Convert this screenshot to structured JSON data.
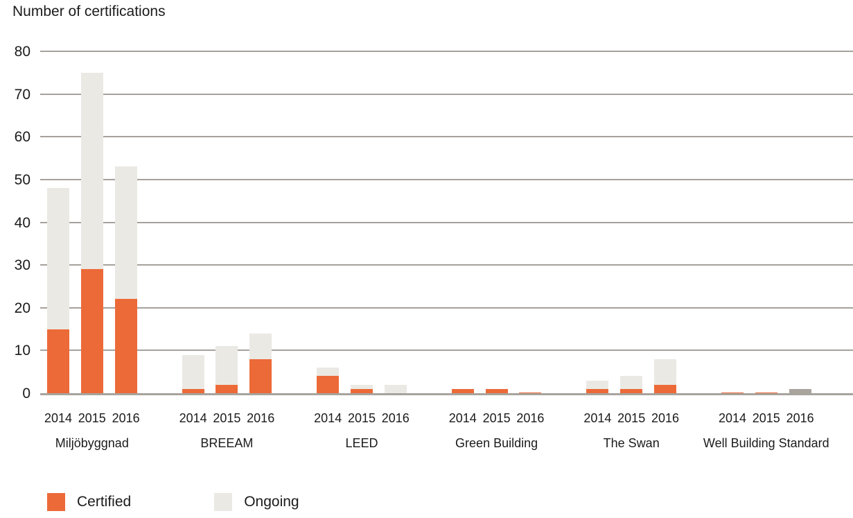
{
  "title": "Number of certifications",
  "legend": {
    "items": [
      {
        "label": "Certified",
        "color": "#ec6a38"
      },
      {
        "label": "Ongoing",
        "color": "#ebe9e4"
      }
    ]
  },
  "colors": {
    "certified": "#ec6a38",
    "ongoing": "#ebe9e4",
    "unlabeled_gray_bar": "#a9a49e",
    "gridline": "#a5a19b",
    "axis_line": "#a7a39d",
    "text": "#1b1b1b",
    "background": "#ffffff"
  },
  "chart_data": {
    "type": "bar",
    "stacked": true,
    "title": "Number of certifications",
    "xlabel": "",
    "ylabel": "Number of certifications",
    "ylim": [
      0,
      80
    ],
    "yticks": [
      0,
      10,
      20,
      30,
      40,
      50,
      60,
      70,
      80
    ],
    "grid": true,
    "legend_position": "bottom-left",
    "series_names": [
      "Certified",
      "Ongoing"
    ],
    "years": [
      "2014",
      "2015",
      "2016"
    ],
    "groups": [
      {
        "label": "Miljöbyggnad",
        "certified": [
          15,
          29,
          22
        ],
        "ongoing": [
          33,
          46,
          31
        ],
        "other": [
          0,
          0,
          0
        ]
      },
      {
        "label": "BREEAM",
        "certified": [
          1,
          2,
          8
        ],
        "ongoing": [
          8,
          9,
          6
        ],
        "other": [
          0,
          0,
          0
        ]
      },
      {
        "label": "LEED",
        "certified": [
          4,
          1,
          0
        ],
        "ongoing": [
          2,
          1,
          2
        ],
        "other": [
          0,
          0,
          0
        ]
      },
      {
        "label": "Green Building",
        "certified": [
          1,
          1,
          0.2
        ],
        "ongoing": [
          0,
          0,
          0
        ],
        "other": [
          0,
          0,
          0
        ]
      },
      {
        "label": "The Swan",
        "certified": [
          1,
          1,
          2
        ],
        "ongoing": [
          2,
          3,
          6
        ],
        "other": [
          0,
          0,
          0
        ]
      },
      {
        "label": "Well Building Standard",
        "certified": [
          0.2,
          0.2,
          0
        ],
        "ongoing": [
          0,
          0,
          0
        ],
        "other": [
          0,
          0,
          1
        ]
      }
    ],
    "other_series_note": "small unlabeled gray bar shown for Well Building Standard 2016",
    "totals_by_group": {
      "Miljöbyggnad": [
        48,
        75,
        53
      ],
      "BREEAM": [
        9,
        11,
        14
      ],
      "LEED": [
        6,
        2,
        2
      ],
      "Green Building": [
        1,
        1,
        0.2
      ],
      "The Swan": [
        3,
        4,
        8
      ],
      "Well Building Standard": [
        0.2,
        0.2,
        1
      ]
    }
  }
}
